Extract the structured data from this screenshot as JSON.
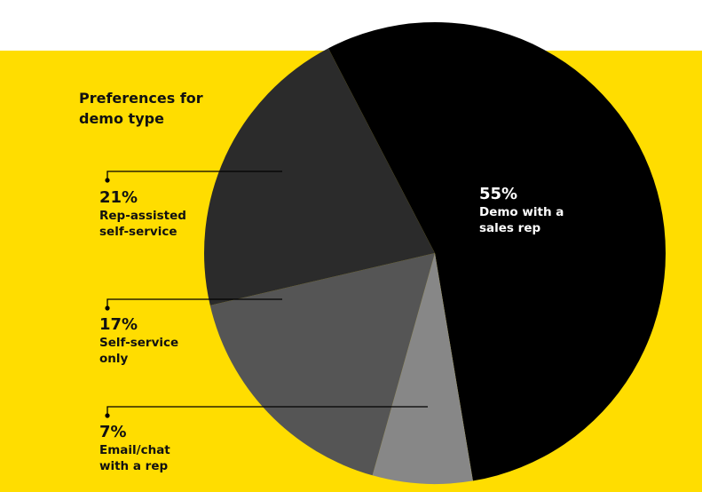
{
  "chart_data": {
    "type": "pie",
    "title": "Preferences for demo type",
    "slices": [
      {
        "label": "Demo with a sales rep",
        "value": 55,
        "pct_label": "55%",
        "color": "#000000"
      },
      {
        "label": "Email/chat with a rep",
        "value": 7,
        "pct_label": "7%",
        "color": "#878787"
      },
      {
        "label": "Self-service only",
        "value": 17,
        "pct_label": "17%",
        "color": "#555555"
      },
      {
        "label": "Rep-assisted self-service",
        "value": 21,
        "pct_label": "21%",
        "color": "#2b2b2b"
      }
    ],
    "background": "#FFDD00",
    "legend": "left"
  }
}
